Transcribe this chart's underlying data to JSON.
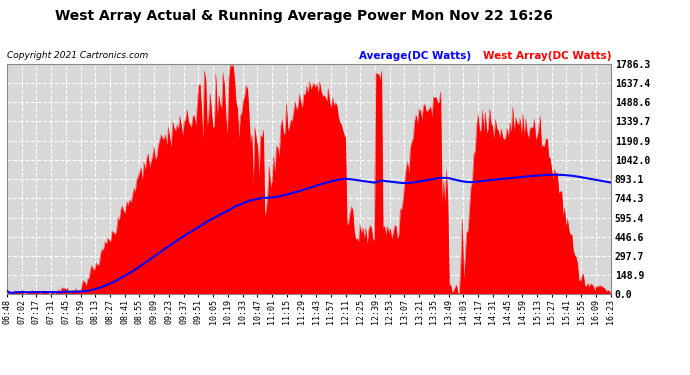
{
  "title": "West Array Actual & Running Average Power Mon Nov 22 16:26",
  "copyright": "Copyright 2021 Cartronics.com",
  "legend_avg": "Average(DC Watts)",
  "legend_west": "West Array(DC Watts)",
  "legend_avg_color": "blue",
  "legend_west_color": "red",
  "title_color": "#000000",
  "bg_color": "#ffffff",
  "plot_bg_color": "#d8d8d8",
  "grid_color": "#ffffff",
  "fill_color": "red",
  "avg_line_color": "blue",
  "yticks": [
    0.0,
    148.9,
    297.7,
    446.6,
    595.4,
    744.3,
    893.1,
    1042.0,
    1190.9,
    1339.7,
    1488.6,
    1637.4,
    1786.3
  ],
  "ymax": 1786.3,
  "xtick_labels": [
    "06:48",
    "07:02",
    "07:17",
    "07:31",
    "07:45",
    "07:59",
    "08:13",
    "08:27",
    "08:41",
    "08:55",
    "09:09",
    "09:23",
    "09:37",
    "09:51",
    "10:05",
    "10:19",
    "10:33",
    "10:47",
    "11:01",
    "11:15",
    "11:29",
    "11:43",
    "11:57",
    "12:11",
    "12:25",
    "12:39",
    "12:53",
    "13:07",
    "13:21",
    "13:35",
    "13:49",
    "14:03",
    "14:17",
    "14:31",
    "14:45",
    "14:59",
    "15:13",
    "15:27",
    "15:41",
    "15:55",
    "16:09",
    "16:23"
  ]
}
